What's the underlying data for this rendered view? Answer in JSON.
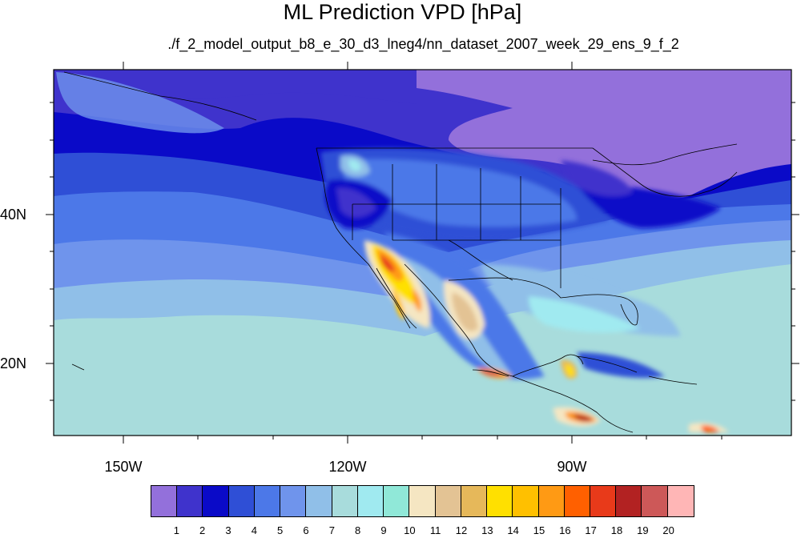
{
  "title": "ML Prediction VPD [hPa]",
  "subtitle": "./f_2_model_output_b8_e_30_d3_lneg4/nn_dataset_2007_week_29_ens_9_f_2",
  "axes": {
    "lon_labels": [
      "150W",
      "120W",
      "90W"
    ],
    "lat_labels": [
      "40N",
      "20N"
    ]
  },
  "colorbar": {
    "labels": [
      "1",
      "2",
      "3",
      "4",
      "5",
      "6",
      "7",
      "8",
      "9",
      "10",
      "11",
      "12",
      "13",
      "14",
      "15",
      "16",
      "17",
      "18",
      "19",
      "20"
    ],
    "colors": [
      "#9370db",
      "#3f33cc",
      "#0a0ac8",
      "#2f4fd6",
      "#4c78e8",
      "#6f94ec",
      "#90bfe8",
      "#a8dcdc",
      "#a0eaf0",
      "#90e8d8",
      "#f5e6c2",
      "#e3c394",
      "#e6b85a",
      "#ffe000",
      "#ffc000",
      "#ff9a14",
      "#ff6000",
      "#e83a1a",
      "#b22222",
      "#cd5858",
      "#ffb6b6"
    ]
  }
}
